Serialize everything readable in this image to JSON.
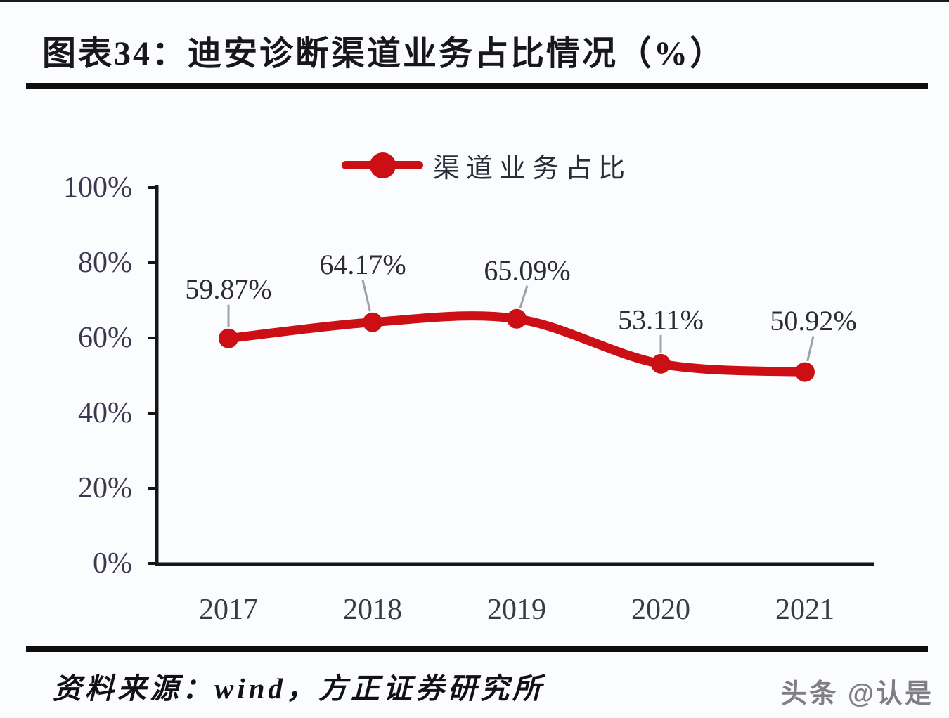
{
  "title": "图表34：迪安诊断渠道业务占比情况（%）",
  "legend": {
    "label": "渠道业务占比"
  },
  "source": {
    "text": "资料来源：wind，方正证券研究所"
  },
  "watermark": "头条 @认是",
  "colors": {
    "series": "#cc0f14",
    "axis": "#161616",
    "tick_label": "#3c3850",
    "x_label": "#3a3a46",
    "data_label": "#2b2a35",
    "leader_line": "#a0a0a8"
  },
  "chart_data": {
    "type": "line",
    "title": "迪安诊断渠道业务占比情况（%）",
    "categories": [
      "2017",
      "2018",
      "2019",
      "2020",
      "2021"
    ],
    "series": [
      {
        "name": "渠道业务占比",
        "values": [
          59.87,
          64.17,
          65.09,
          53.11,
          50.92
        ]
      }
    ],
    "data_labels": [
      "59.87%",
      "64.17%",
      "65.09%",
      "53.11%",
      "50.92%"
    ],
    "xlabel": "",
    "ylabel": "",
    "ylim": [
      0,
      100
    ],
    "yticks": [
      "0%",
      "20%",
      "40%",
      "60%",
      "80%",
      "100%"
    ],
    "grid": false,
    "smooth": true,
    "marker": "circle",
    "legend_position": "top"
  }
}
